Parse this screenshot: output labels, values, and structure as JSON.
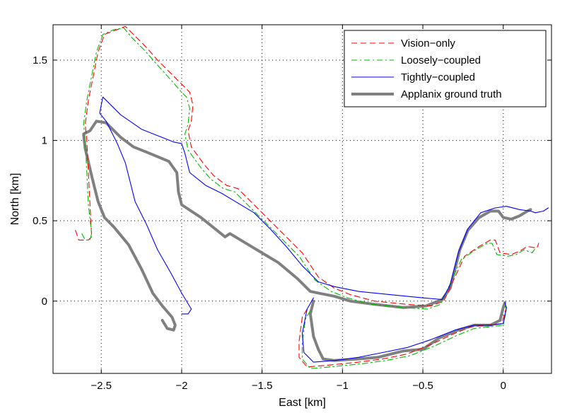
{
  "chart_data": {
    "type": "line",
    "title": "",
    "xlabel": "East [km]",
    "ylabel": "North [km]",
    "xlim": [
      -2.8,
      0.3
    ],
    "ylim": [
      -0.45,
      1.72
    ],
    "xticks": [
      -2.5,
      -2,
      -1.5,
      -1,
      -0.5,
      0
    ],
    "xtick_labels": [
      "−2.5",
      "−2",
      "−1.5",
      "−1",
      "−0.5",
      "0"
    ],
    "yticks": [
      0,
      0.5,
      1,
      1.5
    ],
    "ytick_labels": [
      "0",
      "0.5",
      "1",
      "1.5"
    ],
    "grid": true,
    "legend_position": "top-right",
    "series": [
      {
        "name": "Vision−only",
        "color": "#ff0000",
        "style": "dashed",
        "points": [
          [
            -2.66,
            0.44
          ],
          [
            -2.64,
            0.38
          ],
          [
            -2.58,
            0.38
          ],
          [
            -2.56,
            0.4
          ],
          [
            -2.57,
            0.6
          ],
          [
            -2.58,
            0.8
          ],
          [
            -2.59,
            1.0
          ],
          [
            -2.6,
            1.1
          ],
          [
            -2.58,
            1.25
          ],
          [
            -2.55,
            1.4
          ],
          [
            -2.52,
            1.55
          ],
          [
            -2.48,
            1.66
          ],
          [
            -2.4,
            1.69
          ],
          [
            -2.35,
            1.71
          ],
          [
            -2.3,
            1.66
          ],
          [
            -2.22,
            1.58
          ],
          [
            -2.15,
            1.5
          ],
          [
            -2.05,
            1.4
          ],
          [
            -1.98,
            1.33
          ],
          [
            -1.95,
            1.3
          ],
          [
            -1.93,
            1.22
          ],
          [
            -1.94,
            1.12
          ],
          [
            -1.96,
            1.06
          ],
          [
            -1.94,
            0.96
          ],
          [
            -1.86,
            0.85
          ],
          [
            -1.8,
            0.78
          ],
          [
            -1.72,
            0.72
          ],
          [
            -1.65,
            0.7
          ],
          [
            -1.55,
            0.6
          ],
          [
            -1.45,
            0.5
          ],
          [
            -1.35,
            0.4
          ],
          [
            -1.25,
            0.3
          ],
          [
            -1.15,
            0.15
          ],
          [
            -1.05,
            0.08
          ],
          [
            -0.95,
            0.04
          ],
          [
            -0.8,
            0.0
          ],
          [
            -0.6,
            -0.02
          ],
          [
            -0.45,
            -0.03
          ],
          [
            -0.37,
            0.0
          ],
          [
            -0.3,
            0.15
          ],
          [
            -0.24,
            0.28
          ],
          [
            -0.15,
            0.34
          ],
          [
            -0.08,
            0.38
          ],
          [
            -0.05,
            0.38
          ],
          [
            -0.02,
            0.3
          ],
          [
            0.05,
            0.29
          ],
          [
            0.1,
            0.31
          ],
          [
            0.15,
            0.34
          ],
          [
            0.21,
            0.33
          ],
          [
            0.22,
            0.36
          ]
        ]
      },
      {
        "name": "Loosely−coupled",
        "color": "#00bb00",
        "style": "dashdot",
        "points": [
          [
            -2.62,
            0.42
          ],
          [
            -2.6,
            0.38
          ],
          [
            -2.57,
            0.38
          ],
          [
            -2.56,
            0.42
          ],
          [
            -2.58,
            0.6
          ],
          [
            -2.59,
            0.8
          ],
          [
            -2.6,
            1.0
          ],
          [
            -2.61,
            1.1
          ],
          [
            -2.59,
            1.25
          ],
          [
            -2.56,
            1.4
          ],
          [
            -2.53,
            1.55
          ],
          [
            -2.49,
            1.66
          ],
          [
            -2.42,
            1.69
          ],
          [
            -2.36,
            1.7
          ],
          [
            -2.31,
            1.64
          ],
          [
            -2.23,
            1.56
          ],
          [
            -2.16,
            1.48
          ],
          [
            -2.07,
            1.38
          ],
          [
            -2.0,
            1.3
          ],
          [
            -1.97,
            1.27
          ],
          [
            -1.95,
            1.2
          ],
          [
            -1.96,
            1.1
          ],
          [
            -1.98,
            1.04
          ],
          [
            -1.96,
            0.94
          ],
          [
            -1.88,
            0.83
          ],
          [
            -1.82,
            0.76
          ],
          [
            -1.74,
            0.7
          ],
          [
            -1.67,
            0.68
          ],
          [
            -1.57,
            0.58
          ],
          [
            -1.47,
            0.48
          ],
          [
            -1.37,
            0.38
          ],
          [
            -1.27,
            0.28
          ],
          [
            -1.17,
            0.13
          ],
          [
            -1.07,
            0.06
          ],
          [
            -0.97,
            0.02
          ],
          [
            -0.82,
            -0.02
          ],
          [
            -0.62,
            -0.04
          ],
          [
            -0.47,
            -0.05
          ],
          [
            -0.39,
            -0.02
          ],
          [
            -0.32,
            0.13
          ],
          [
            -0.26,
            0.26
          ],
          [
            -0.17,
            0.32
          ],
          [
            -0.1,
            0.36
          ],
          [
            -0.07,
            0.36
          ],
          [
            -0.04,
            0.29
          ],
          [
            0.03,
            0.28
          ],
          [
            0.08,
            0.29
          ],
          [
            0.13,
            0.32
          ],
          [
            0.18,
            0.3
          ],
          [
            0.2,
            0.33
          ]
        ]
      },
      {
        "name": "Tightly−coupled",
        "color": "#0000ff",
        "style": "solid",
        "points": [
          [
            -2.0,
            -0.08
          ],
          [
            -1.96,
            -0.08
          ],
          [
            -1.94,
            -0.05
          ],
          [
            -2.0,
            0.05
          ],
          [
            -2.07,
            0.18
          ],
          [
            -2.15,
            0.32
          ],
          [
            -2.22,
            0.48
          ],
          [
            -2.29,
            0.62
          ],
          [
            -2.32,
            0.74
          ],
          [
            -2.35,
            0.86
          ],
          [
            -2.4,
            0.98
          ],
          [
            -2.47,
            1.12
          ],
          [
            -2.51,
            1.17
          ],
          [
            -2.5,
            1.22
          ],
          [
            -2.49,
            1.27
          ],
          [
            -2.38,
            1.16
          ],
          [
            -2.25,
            1.07
          ],
          [
            -2.15,
            1.03
          ],
          [
            -2.05,
            0.99
          ],
          [
            -2.0,
            0.98
          ],
          [
            -1.98,
            0.92
          ],
          [
            -1.95,
            0.8
          ],
          [
            -1.85,
            0.72
          ],
          [
            -1.75,
            0.67
          ],
          [
            -1.65,
            0.61
          ],
          [
            -1.55,
            0.55
          ],
          [
            -1.45,
            0.45
          ],
          [
            -1.35,
            0.34
          ],
          [
            -1.25,
            0.22
          ],
          [
            -1.15,
            0.12
          ],
          [
            -1.05,
            0.09
          ],
          [
            -0.9,
            0.06
          ],
          [
            -0.7,
            0.04
          ],
          [
            -0.5,
            0.02
          ],
          [
            -0.38,
            0.01
          ],
          [
            -0.33,
            0.1
          ],
          [
            -0.28,
            0.3
          ],
          [
            -0.22,
            0.45
          ],
          [
            -0.14,
            0.55
          ],
          [
            -0.05,
            0.58
          ],
          [
            0.02,
            0.59
          ],
          [
            0.1,
            0.57
          ],
          [
            0.17,
            0.56
          ],
          [
            0.2,
            0.55
          ],
          [
            0.25,
            0.56
          ],
          [
            0.28,
            0.58
          ]
        ]
      },
      {
        "name": "Applanix ground truth",
        "color": "#808080",
        "style": "solid-thick",
        "points": [
          [
            -2.12,
            -0.12
          ],
          [
            -2.09,
            -0.17
          ],
          [
            -2.05,
            -0.18
          ],
          [
            -2.04,
            -0.15
          ],
          [
            -2.06,
            -0.1
          ],
          [
            -2.12,
            -0.03
          ],
          [
            -2.18,
            0.05
          ],
          [
            -2.25,
            0.2
          ],
          [
            -2.33,
            0.35
          ],
          [
            -2.42,
            0.46
          ],
          [
            -2.48,
            0.52
          ],
          [
            -2.52,
            0.62
          ],
          [
            -2.56,
            0.78
          ],
          [
            -2.6,
            0.95
          ],
          [
            -2.61,
            1.04
          ],
          [
            -2.57,
            1.06
          ],
          [
            -2.53,
            1.12
          ],
          [
            -2.47,
            1.11
          ],
          [
            -2.38,
            1.02
          ],
          [
            -2.3,
            0.96
          ],
          [
            -2.2,
            0.92
          ],
          [
            -2.08,
            0.87
          ],
          [
            -2.03,
            0.8
          ],
          [
            -2.02,
            0.68
          ],
          [
            -2.0,
            0.6
          ],
          [
            -1.88,
            0.52
          ],
          [
            -1.78,
            0.44
          ],
          [
            -1.73,
            0.4
          ],
          [
            -1.7,
            0.42
          ],
          [
            -1.55,
            0.33
          ],
          [
            -1.4,
            0.24
          ],
          [
            -1.28,
            0.14
          ],
          [
            -1.2,
            0.06
          ],
          [
            -1.15,
            0.05
          ],
          [
            -1.05,
            0.03
          ],
          [
            -0.95,
            0.0
          ],
          [
            -0.8,
            -0.02
          ],
          [
            -0.62,
            -0.04
          ],
          [
            -0.48,
            -0.03
          ],
          [
            -0.38,
            0.01
          ],
          [
            -0.33,
            0.08
          ],
          [
            -0.3,
            0.2
          ],
          [
            -0.27,
            0.32
          ],
          [
            -0.22,
            0.44
          ],
          [
            -0.15,
            0.52
          ],
          [
            -0.08,
            0.56
          ],
          [
            -0.03,
            0.56
          ],
          [
            0.0,
            0.52
          ],
          [
            0.05,
            0.51
          ],
          [
            0.1,
            0.53
          ],
          [
            0.15,
            0.56
          ],
          [
            0.17,
            0.57
          ]
        ]
      },
      {
        "name": "",
        "color": "#ff0000",
        "style": "dashed",
        "points": [
          [
            -1.22,
            -0.05
          ],
          [
            -1.25,
            -0.1
          ],
          [
            -1.27,
            -0.25
          ],
          [
            -1.27,
            -0.35
          ],
          [
            -1.22,
            -0.41
          ],
          [
            -1.1,
            -0.4
          ],
          [
            -0.9,
            -0.38
          ],
          [
            -0.75,
            -0.36
          ],
          [
            -0.6,
            -0.33
          ],
          [
            -0.45,
            -0.27
          ],
          [
            -0.3,
            -0.2
          ],
          [
            -0.2,
            -0.16
          ],
          [
            -0.1,
            -0.15
          ],
          [
            -0.01,
            -0.14
          ],
          [
            0.02,
            -0.04
          ],
          [
            0.01,
            -0.02
          ]
        ]
      },
      {
        "name": "",
        "color": "#00bb00",
        "style": "dashdot",
        "points": [
          [
            -1.2,
            -0.06
          ],
          [
            -1.23,
            -0.11
          ],
          [
            -1.25,
            -0.26
          ],
          [
            -1.25,
            -0.36
          ],
          [
            -1.2,
            -0.42
          ],
          [
            -1.08,
            -0.41
          ],
          [
            -0.88,
            -0.39
          ],
          [
            -0.73,
            -0.37
          ],
          [
            -0.58,
            -0.34
          ],
          [
            -0.43,
            -0.28
          ],
          [
            -0.28,
            -0.21
          ],
          [
            -0.18,
            -0.17
          ],
          [
            -0.08,
            -0.16
          ],
          [
            0.0,
            -0.15
          ],
          [
            0.02,
            -0.05
          ],
          [
            0.01,
            -0.03
          ]
        ]
      },
      {
        "name": "",
        "color": "#0000ff",
        "style": "solid",
        "points": [
          [
            -1.18,
            0.02
          ],
          [
            -1.22,
            -0.05
          ],
          [
            -1.25,
            -0.2
          ],
          [
            -1.24,
            -0.32
          ],
          [
            -1.18,
            -0.38
          ],
          [
            -1.05,
            -0.37
          ],
          [
            -0.9,
            -0.35
          ],
          [
            -0.75,
            -0.32
          ],
          [
            -0.6,
            -0.29
          ],
          [
            -0.45,
            -0.24
          ],
          [
            -0.3,
            -0.18
          ],
          [
            -0.18,
            -0.15
          ],
          [
            -0.07,
            -0.15
          ],
          [
            0.0,
            -0.14
          ],
          [
            0.02,
            -0.04
          ],
          [
            0.01,
            -0.01
          ]
        ]
      },
      {
        "name": "",
        "color": "#808080",
        "style": "solid-thick",
        "points": [
          [
            -1.18,
            0.0
          ],
          [
            -1.2,
            -0.08
          ],
          [
            -1.18,
            -0.22
          ],
          [
            -1.15,
            -0.3
          ],
          [
            -1.12,
            -0.36
          ],
          [
            -1.05,
            -0.37
          ],
          [
            -0.9,
            -0.36
          ],
          [
            -0.78,
            -0.35
          ],
          [
            -0.62,
            -0.31
          ],
          [
            -0.5,
            -0.3
          ],
          [
            -0.4,
            -0.23
          ],
          [
            -0.28,
            -0.18
          ],
          [
            -0.18,
            -0.15
          ],
          [
            -0.08,
            -0.15
          ],
          [
            -0.02,
            -0.12
          ],
          [
            0.0,
            -0.04
          ],
          [
            0.01,
            -0.01
          ]
        ]
      }
    ]
  }
}
